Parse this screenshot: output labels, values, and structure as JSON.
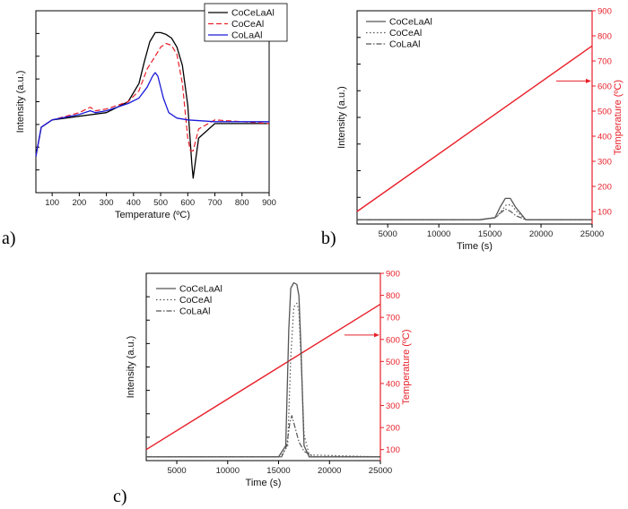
{
  "colors": {
    "black": "#000000",
    "red": "#e8202a",
    "blue": "#1a1ad8",
    "gray": "#555555",
    "temp": "#e8202a"
  },
  "chart_data": [
    {
      "panel_label": "a)",
      "type": "line",
      "xlabel": "Temperature (ºC)",
      "ylabel": "Intensity (a.u.)",
      "xlim": [
        40,
        900
      ],
      "x_ticks": [
        100,
        200,
        300,
        400,
        500,
        600,
        700,
        800,
        900
      ],
      "ylim": [
        0,
        100
      ],
      "y_ticks_labeled": false,
      "legend_position": "top-right",
      "series": [
        {
          "name": "CoCeLaAl",
          "color": "#000000",
          "dash": "solid",
          "x": [
            40,
            60,
            100,
            200,
            300,
            380,
            420,
            440,
            460,
            480,
            500,
            520,
            540,
            560,
            580,
            600,
            615,
            620,
            640,
            700,
            800,
            900
          ],
          "y": [
            20,
            36,
            40,
            42,
            44,
            50,
            60,
            72,
            83,
            88,
            88,
            87,
            85,
            80,
            70,
            48,
            16,
            8,
            30,
            38,
            38,
            38
          ]
        },
        {
          "name": "CoCeAl",
          "color": "#e8202a",
          "dash": "dashed",
          "x": [
            40,
            60,
            100,
            200,
            240,
            260,
            300,
            380,
            420,
            450,
            480,
            500,
            520,
            540,
            560,
            580,
            600,
            610,
            620,
            640,
            700,
            800,
            900
          ],
          "y": [
            20,
            36,
            40,
            44,
            47,
            45,
            46,
            50,
            56,
            68,
            75,
            80,
            82,
            81,
            76,
            60,
            30,
            23,
            23,
            35,
            40,
            39,
            38
          ]
        },
        {
          "name": "CoLaAl",
          "color": "#1a1ad8",
          "dash": "solid",
          "x": [
            40,
            60,
            100,
            200,
            240,
            260,
            300,
            380,
            420,
            450,
            470,
            480,
            490,
            510,
            530,
            560,
            600,
            700,
            800,
            900
          ],
          "y": [
            20,
            36,
            40,
            43,
            45,
            44,
            45,
            49,
            52,
            58,
            64,
            66,
            64,
            52,
            44,
            41,
            40,
            39,
            39,
            39
          ]
        }
      ]
    },
    {
      "panel_label": "b)",
      "type": "line",
      "xlabel": "Time (s)",
      "ylabel": "Intensity (a.u.)",
      "y2label": "Temperature (ºC)",
      "xlim": [
        2000,
        25000
      ],
      "x_ticks": [
        5000,
        10000,
        15000,
        20000,
        25000
      ],
      "ylim": [
        0,
        100
      ],
      "y2lim": [
        50,
        900
      ],
      "y2_ticks": [
        100,
        200,
        300,
        400,
        500,
        600,
        700,
        800,
        900
      ],
      "legend_position": "top-left",
      "series": [
        {
          "name": "CoCeLaAl",
          "color": "#555555",
          "dash": "solid",
          "x": [
            2000,
            14000,
            15500,
            16000,
            16500,
            17000,
            17500,
            18500,
            25000
          ],
          "y": [
            2,
            2,
            3,
            8,
            12,
            12,
            8,
            2,
            2
          ]
        },
        {
          "name": "CoCeAl",
          "color": "#555555",
          "dash": "dotted",
          "x": [
            2000,
            14000,
            15600,
            16100,
            16600,
            17100,
            17600,
            18500,
            25000
          ],
          "y": [
            2,
            2,
            3,
            6,
            9,
            9,
            6,
            2,
            2
          ]
        },
        {
          "name": "CoLaAl",
          "color": "#555555",
          "dash": "dashdot",
          "x": [
            2000,
            14000,
            15500,
            16000,
            16500,
            17000,
            17500,
            18500,
            25000
          ],
          "y": [
            2,
            2,
            3,
            5,
            7,
            6,
            4,
            2,
            2
          ]
        }
      ],
      "temperature": {
        "x": [
          2000,
          25000
        ],
        "y": [
          100,
          760
        ],
        "axis_marker_value": 620
      }
    },
    {
      "panel_label": "c)",
      "type": "line",
      "xlabel": "Time (s)",
      "ylabel": "Intensity (a.u.)",
      "y2label": "Temperature (ºC)",
      "xlim": [
        2000,
        25000
      ],
      "x_ticks": [
        5000,
        10000,
        15000,
        20000,
        25000
      ],
      "ylim": [
        0,
        100
      ],
      "y2lim": [
        50,
        900
      ],
      "y2_ticks": [
        100,
        200,
        300,
        400,
        500,
        600,
        700,
        800,
        900
      ],
      "legend_position": "top-left",
      "series": [
        {
          "name": "CoCeLaAl",
          "color": "#555555",
          "dash": "solid",
          "x": [
            2000,
            15000,
            15700,
            16000,
            16200,
            16500,
            16800,
            17000,
            17200,
            17500,
            18000,
            25000
          ],
          "y": [
            2,
            2,
            8,
            70,
            92,
            95,
            94,
            88,
            60,
            8,
            2,
            2
          ]
        },
        {
          "name": "CoCeAl",
          "color": "#555555",
          "dash": "dotted",
          "x": [
            2000,
            15200,
            15900,
            16200,
            16500,
            16800,
            17000,
            17200,
            17500,
            18000,
            25000
          ],
          "y": [
            2,
            2,
            8,
            55,
            82,
            84,
            80,
            55,
            14,
            3,
            2
          ]
        },
        {
          "name": "CoLaAl",
          "color": "#555555",
          "dash": "dashdot",
          "x": [
            2000,
            15300,
            15800,
            16100,
            16300,
            16600,
            17000,
            17500,
            18500,
            25000
          ],
          "y": [
            2,
            2,
            8,
            20,
            24,
            18,
            10,
            5,
            2,
            2
          ]
        }
      ],
      "temperature": {
        "x": [
          2000,
          25000
        ],
        "y": [
          100,
          760
        ],
        "axis_marker_value": 620
      }
    }
  ]
}
